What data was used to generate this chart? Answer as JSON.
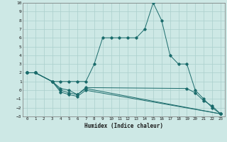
{
  "xlabel": "Humidex (Indice chaleur)",
  "background_color": "#cde8e5",
  "grid_color": "#aacfcc",
  "line_color": "#1a6b6b",
  "xlim": [
    -0.5,
    23.5
  ],
  "ylim": [
    -3,
    10
  ],
  "xticks": [
    0,
    1,
    2,
    3,
    4,
    5,
    6,
    7,
    8,
    9,
    10,
    11,
    12,
    13,
    14,
    15,
    16,
    17,
    18,
    19,
    20,
    21,
    22,
    23
  ],
  "yticks": [
    -3,
    -2,
    -1,
    0,
    1,
    2,
    3,
    4,
    5,
    6,
    7,
    8,
    9,
    10
  ],
  "lines": [
    {
      "x": [
        0,
        1,
        3,
        4,
        5,
        6,
        7,
        8,
        9,
        10,
        11,
        12,
        13,
        14,
        15,
        16,
        17,
        18,
        19,
        20,
        21,
        22,
        23
      ],
      "y": [
        2,
        2,
        1,
        1,
        1,
        1,
        1,
        3,
        6,
        6,
        6,
        6,
        6,
        7,
        10,
        8,
        4,
        3,
        3,
        0,
        -1,
        -2,
        -2.7
      ]
    },
    {
      "x": [
        0,
        1,
        3,
        4,
        5,
        6,
        7,
        23
      ],
      "y": [
        2,
        2,
        1,
        0,
        -0.3,
        -0.5,
        0.2,
        -2.7
      ]
    },
    {
      "x": [
        0,
        1,
        3,
        4,
        5,
        6,
        7,
        23
      ],
      "y": [
        2,
        2,
        1,
        -0.2,
        -0.5,
        -0.7,
        0.0,
        -2.7
      ]
    },
    {
      "x": [
        0,
        1,
        3,
        4,
        5,
        6,
        7,
        19,
        20,
        21,
        22,
        23
      ],
      "y": [
        2,
        2,
        1,
        0.2,
        0.0,
        -0.5,
        0.3,
        0.2,
        -0.3,
        -1.2,
        -1.8,
        -2.7
      ]
    }
  ]
}
